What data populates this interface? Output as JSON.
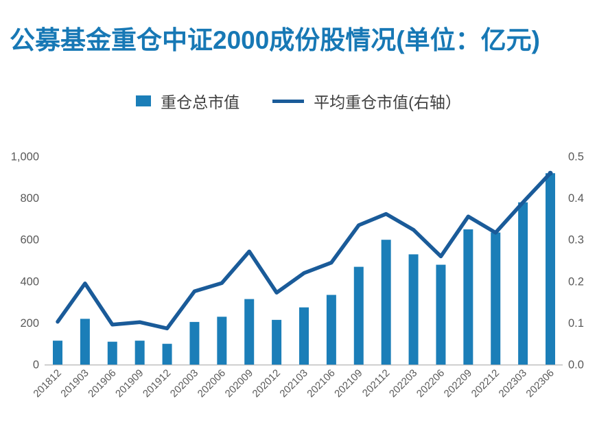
{
  "title": "公募基金重仓中证2000成份股情况(单位：亿元)",
  "legend": {
    "bar_label": "重仓总市值",
    "line_label": "平均重仓市值(右轴）"
  },
  "colors": {
    "title": "#1778B5",
    "bar": "#1B7EB8",
    "line": "#1A5B99",
    "axis_text": "#595959",
    "axis_line": "#BFBFBF"
  },
  "chart_data": {
    "type": "bar+line combo",
    "title": "公募基金重仓中证2000成份股情况(单位：亿元)",
    "grid": false,
    "legend_position": "top",
    "categories": [
      "201812",
      "201903",
      "201906",
      "201909",
      "201912",
      "202003",
      "202006",
      "202009",
      "202012",
      "202103",
      "202106",
      "202109",
      "202112",
      "202203",
      "202206",
      "202209",
      "202212",
      "202303",
      "202306"
    ],
    "series": [
      {
        "name": "重仓总市值",
        "type": "bar",
        "axis": "left",
        "values": [
          115,
          220,
          110,
          115,
          100,
          205,
          230,
          315,
          215,
          275,
          335,
          470,
          600,
          530,
          480,
          650,
          635,
          780,
          920
        ]
      },
      {
        "name": "平均重仓市值(右轴）",
        "type": "line",
        "axis": "right",
        "values": [
          0.103,
          0.195,
          0.096,
          0.102,
          0.087,
          0.176,
          0.196,
          0.272,
          0.173,
          0.22,
          0.245,
          0.335,
          0.362,
          0.324,
          0.26,
          0.356,
          0.317,
          0.39,
          0.46
        ]
      }
    ],
    "left_axis": {
      "min": 0,
      "max": 1000,
      "ticks": [
        "0",
        "200",
        "400",
        "600",
        "800",
        "1,000"
      ]
    },
    "right_axis": {
      "min": 0,
      "max": 0.5,
      "ticks": [
        "0.0",
        "0.1",
        "0.2",
        "0.3",
        "0.4",
        "0.5"
      ]
    }
  }
}
